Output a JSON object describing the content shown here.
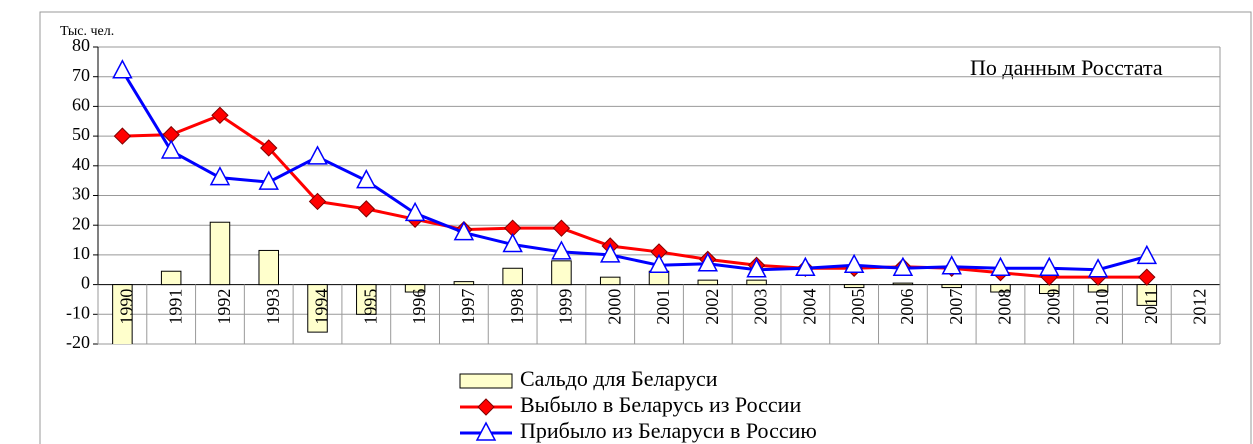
{
  "chart_data": {
    "type": "combo",
    "unit_label": "Тыс. чел.",
    "annotation": "По данным Росстата",
    "categories": [
      "1990",
      "1991",
      "1992",
      "1993",
      "1994",
      "1995",
      "1996",
      "1997",
      "1998",
      "1999",
      "2000",
      "2001",
      "2002",
      "2003",
      "2004",
      "2005",
      "2006",
      "2007",
      "2008",
      "2009",
      "2010",
      "2011",
      "2012"
    ],
    "series": [
      {
        "name": "Сальдо для  Беларуси",
        "type": "bar",
        "color": "#ffffcc",
        "values": [
          -22,
          4.5,
          21,
          11.5,
          -16,
          -10,
          -2.5,
          1,
          5.5,
          8,
          2.5,
          4.5,
          1.5,
          1.5,
          0,
          -1,
          0.5,
          -1,
          -2.5,
          -3,
          -2.5,
          -7,
          null
        ]
      },
      {
        "name": "Выбыло в Беларусь из России",
        "type": "line",
        "marker": "diamond",
        "color": "#ff0000",
        "values": [
          50,
          50.5,
          57,
          46,
          28,
          25.5,
          22,
          18.5,
          19,
          19,
          13,
          11,
          8.5,
          6.5,
          5.5,
          5.5,
          6,
          5.5,
          4,
          2.5,
          2.5,
          2.5,
          null
        ]
      },
      {
        "name": "Прибыло из Беларуси в Россию",
        "type": "line",
        "marker": "triangle",
        "color": "#0000ff",
        "values": [
          72,
          45,
          36,
          34.5,
          43,
          35,
          24,
          17.5,
          13.5,
          11,
          10,
          6.5,
          7,
          5,
          5.5,
          6.5,
          5.5,
          6,
          5.5,
          5.5,
          5,
          9.5,
          null
        ]
      }
    ],
    "ylim": [
      -20,
      80
    ],
    "yticks": [
      -20,
      -10,
      0,
      10,
      20,
      30,
      40,
      50,
      60,
      70,
      80
    ],
    "grid": true
  }
}
